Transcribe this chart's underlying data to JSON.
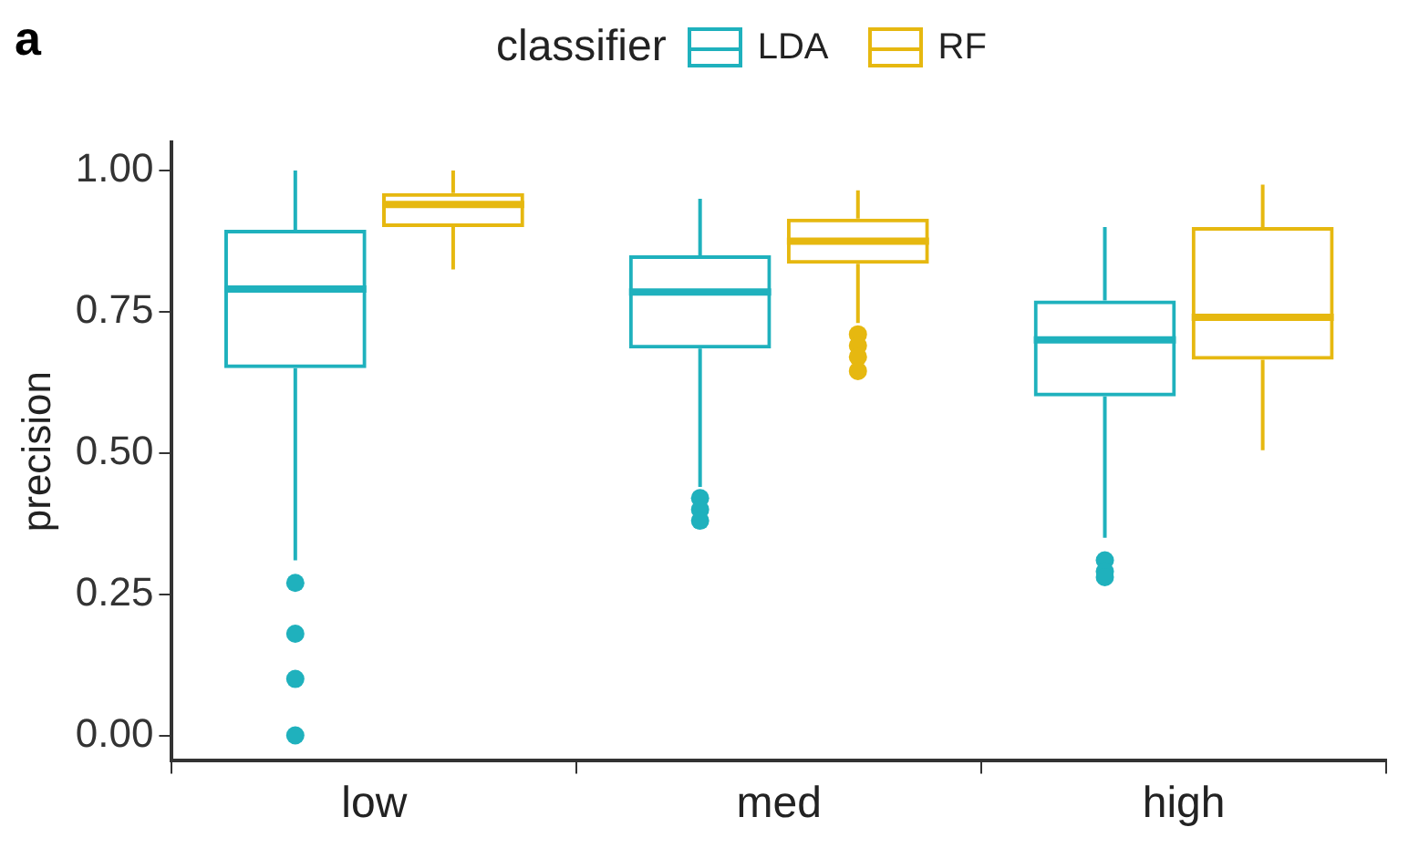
{
  "chart_data": {
    "type": "box",
    "annotations": [
      "a"
    ],
    "legend_title": "classifier",
    "legend": "top",
    "grid": false,
    "ylabel": "precision",
    "categories": [
      "low",
      "med",
      "high"
    ],
    "ylim": [
      -0.045,
      1.05
    ],
    "yticks": [
      {
        "value": 0,
        "label": "0.00"
      },
      {
        "value": 0.25,
        "label": "0.25"
      },
      {
        "value": 0.5,
        "label": "0.50"
      },
      {
        "value": 0.75,
        "label": "0.75"
      },
      {
        "value": 1,
        "label": "1.00"
      }
    ],
    "series": [
      {
        "name": "LDA",
        "color": "#1fb1bd",
        "boxes": [
          {
            "low": 0.31,
            "q1": 0.65,
            "median": 0.79,
            "q3": 0.895,
            "high": 1.0,
            "outliers": [
              0.27,
              0.18,
              0.1,
              0.0
            ]
          },
          {
            "low": 0.44,
            "q1": 0.685,
            "median": 0.785,
            "q3": 0.85,
            "high": 0.95,
            "outliers": [
              0.42,
              0.4,
              0.38
            ]
          },
          {
            "low": 0.35,
            "q1": 0.6,
            "median": 0.7,
            "q3": 0.77,
            "high": 0.9,
            "outliers": [
              0.31,
              0.29,
              0.28
            ]
          }
        ]
      },
      {
        "name": "RF",
        "color": "#e6b810",
        "boxes": [
          {
            "low": 0.825,
            "q1": 0.9,
            "median": 0.94,
            "q3": 0.96,
            "high": 1.0
          },
          {
            "low": 0.73,
            "q1": 0.835,
            "median": 0.875,
            "q3": 0.915,
            "high": 0.965,
            "outliers": [
              0.71,
              0.69,
              0.67,
              0.645
            ]
          },
          {
            "low": 0.505,
            "q1": 0.665,
            "median": 0.74,
            "q3": 0.9,
            "high": 0.975
          }
        ]
      }
    ]
  }
}
